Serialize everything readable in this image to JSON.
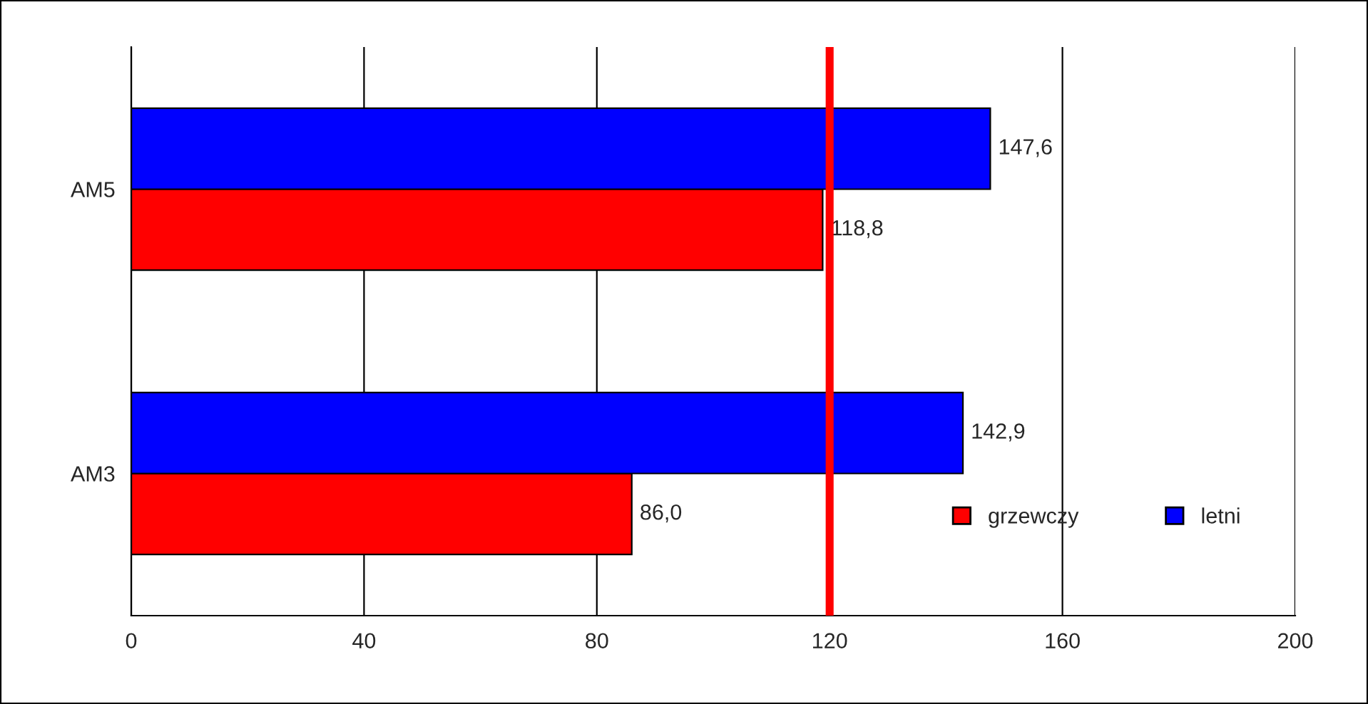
{
  "chart_data": {
    "type": "bar",
    "orientation": "horizontal",
    "categories": [
      "AM5",
      "AM3"
    ],
    "series": [
      {
        "name": "grzewczy",
        "color": "#ff0000",
        "values": [
          118.8,
          86.0
        ],
        "value_labels": [
          "118,8",
          "86,0"
        ]
      },
      {
        "name": "letni",
        "color": "#0000ff",
        "values": [
          147.6,
          142.9
        ],
        "value_labels": [
          "147,6",
          "142,9"
        ]
      }
    ],
    "xlim": [
      0,
      200
    ],
    "xticks": [
      0,
      40,
      80,
      120,
      160,
      200
    ],
    "grid": "x",
    "legend": "bottom right",
    "ref_lines": [
      {
        "axis": "x",
        "value": 120,
        "color": "#ff0000"
      }
    ]
  }
}
